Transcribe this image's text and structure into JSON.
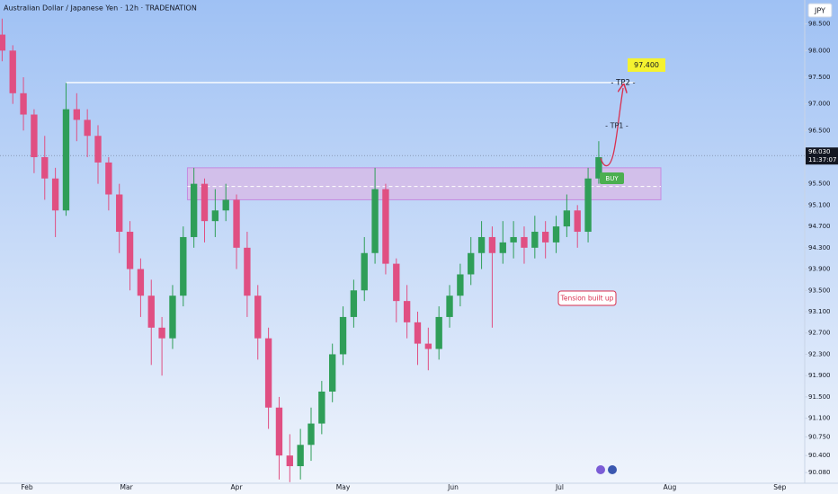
{
  "chart_data": {
    "type": "candlestick",
    "title": "Australian Dollar / Japanese Yen · 12h · TRADENATION",
    "currency": "JPY",
    "up_color": "#2f9e58",
    "down_color": "#e04f82",
    "x": [
      25,
      28,
      31,
      34,
      37,
      40,
      43,
      46,
      49,
      52,
      55,
      58,
      61,
      64,
      67,
      70,
      73,
      76,
      79,
      82,
      85,
      88,
      91,
      94,
      97,
      100,
      103,
      106,
      109,
      112,
      115,
      118,
      121,
      124,
      127,
      130,
      133,
      136,
      139,
      142,
      145,
      148,
      151,
      154,
      157,
      160,
      163,
      166,
      169,
      172,
      175,
      178,
      181,
      184,
      187,
      190,
      193
    ],
    "open": [
      98.3,
      98.0,
      97.2,
      96.8,
      96.0,
      95.6,
      95.0,
      96.9,
      96.7,
      96.4,
      95.9,
      95.3,
      94.6,
      93.9,
      93.4,
      92.8,
      92.6,
      93.4,
      94.5,
      95.5,
      94.8,
      95.0,
      95.2,
      94.3,
      93.4,
      92.6,
      91.3,
      90.4,
      90.2,
      90.6,
      91.0,
      91.6,
      92.3,
      93.0,
      93.5,
      94.2,
      95.4,
      94.0,
      93.3,
      92.9,
      92.5,
      92.4,
      93.0,
      93.4,
      93.8,
      94.2,
      94.5,
      94.2,
      94.4,
      94.5,
      94.3,
      94.6,
      94.4,
      94.7,
      95.0,
      94.6,
      95.6
    ],
    "high": [
      98.6,
      98.1,
      97.5,
      96.9,
      96.4,
      95.8,
      97.4,
      97.2,
      96.9,
      96.6,
      96.0,
      95.5,
      94.8,
      94.1,
      93.7,
      93.0,
      93.6,
      94.7,
      95.8,
      95.6,
      95.4,
      95.5,
      95.3,
      94.6,
      93.6,
      92.8,
      91.5,
      90.8,
      90.9,
      91.3,
      91.8,
      92.5,
      93.2,
      93.7,
      94.5,
      95.8,
      95.5,
      94.1,
      93.6,
      93.1,
      92.8,
      93.2,
      93.6,
      94.0,
      94.5,
      94.8,
      94.7,
      94.8,
      94.8,
      94.7,
      94.9,
      94.8,
      94.9,
      95.3,
      95.1,
      95.8,
      96.3
    ],
    "low": [
      97.8,
      97.0,
      96.5,
      95.7,
      95.2,
      94.5,
      94.9,
      96.3,
      96.0,
      95.5,
      95.0,
      94.2,
      93.5,
      93.0,
      92.1,
      91.9,
      92.4,
      93.2,
      94.3,
      94.4,
      94.5,
      94.8,
      93.9,
      93.0,
      92.2,
      90.9,
      89.95,
      89.9,
      89.95,
      90.3,
      90.8,
      91.4,
      92.1,
      92.8,
      93.3,
      94.0,
      93.8,
      92.9,
      92.6,
      92.1,
      92.0,
      92.2,
      92.8,
      93.2,
      93.6,
      93.9,
      92.8,
      94.0,
      94.1,
      94.0,
      94.1,
      94.1,
      94.2,
      94.5,
      94.3,
      94.4,
      95.5
    ],
    "close": [
      98.0,
      97.2,
      96.8,
      96.0,
      95.6,
      95.0,
      96.9,
      96.7,
      96.4,
      95.9,
      95.3,
      94.6,
      93.9,
      93.4,
      92.8,
      92.6,
      93.4,
      94.5,
      95.5,
      94.8,
      95.0,
      95.2,
      94.3,
      93.4,
      92.6,
      91.3,
      90.4,
      90.2,
      90.6,
      91.0,
      91.6,
      92.3,
      93.0,
      93.5,
      94.2,
      95.4,
      94.0,
      93.3,
      92.9,
      92.5,
      92.4,
      93.0,
      93.4,
      93.8,
      94.2,
      94.5,
      94.2,
      94.4,
      94.5,
      94.3,
      94.6,
      94.4,
      94.7,
      95.0,
      94.6,
      95.6,
      96.0
    ],
    "xlim": [
      24.4,
      251
    ],
    "xticks": [
      {
        "value": 32,
        "label": "Feb"
      },
      {
        "value": 60,
        "label": "Mar"
      },
      {
        "value": 91,
        "label": "Apr"
      },
      {
        "value": 121,
        "label": "May"
      },
      {
        "value": 152,
        "label": "Jun"
      },
      {
        "value": 182,
        "label": "Jul"
      },
      {
        "value": 213,
        "label": "Aug"
      },
      {
        "value": 244,
        "label": "Sep"
      }
    ],
    "ylim": [
      89.88,
      98.95
    ],
    "yticks": [
      {
        "value": 98.5,
        "label": "98.500"
      },
      {
        "value": 98,
        "label": "98.000"
      },
      {
        "value": 97.5,
        "label": "97.500"
      },
      {
        "value": 97,
        "label": "97.000"
      },
      {
        "value": 96.5,
        "label": "96.500"
      },
      {
        "value": 95.5,
        "label": "95.500"
      },
      {
        "value": 95.1,
        "label": "95.100"
      },
      {
        "value": 94.7,
        "label": "94.700"
      },
      {
        "value": 94.3,
        "label": "94.300"
      },
      {
        "value": 93.9,
        "label": "93.900"
      },
      {
        "value": 93.5,
        "label": "93.500"
      },
      {
        "value": 93.1,
        "label": "93.100"
      },
      {
        "value": 92.7,
        "label": "92.700"
      },
      {
        "value": 92.3,
        "label": "92.300"
      },
      {
        "value": 91.9,
        "label": "91.900"
      },
      {
        "value": 91.5,
        "label": "91.500"
      },
      {
        "value": 91.1,
        "label": "91.100"
      },
      {
        "value": 90.75,
        "label": "90.750"
      },
      {
        "value": 90.4,
        "label": "90.400"
      },
      {
        "value": 90.08,
        "label": "90.080"
      }
    ],
    "zone": [
      95.2,
      95.8
    ],
    "zone_mid": 95.45,
    "target": {
      "value": 97.4,
      "label": "97.400"
    },
    "last_price": {
      "value": 96.03,
      "label": "96.030"
    },
    "countdown": "11:37:07",
    "tp1": "- TP1 -",
    "tp2": "- TP2 -",
    "buy": "BUY",
    "note": "Tension built up"
  }
}
